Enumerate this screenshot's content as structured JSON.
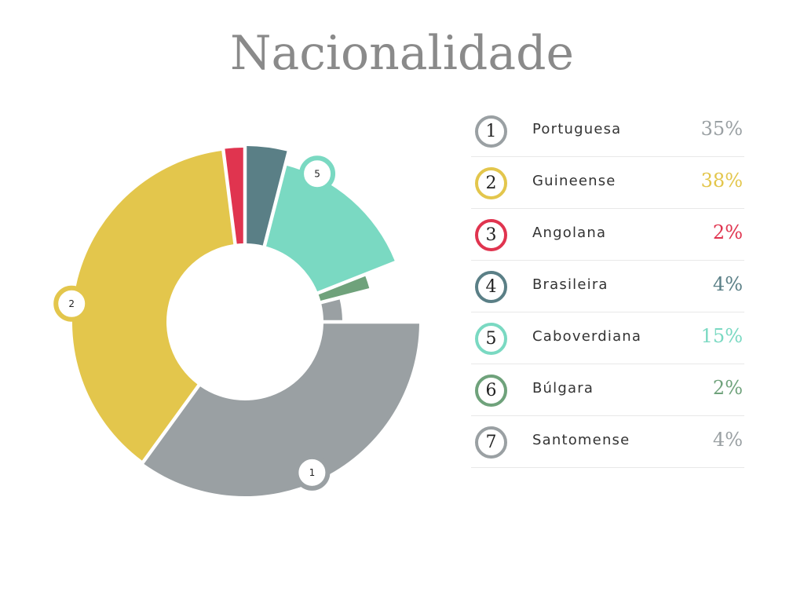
{
  "title": "Nacionalidade",
  "chart_data": {
    "type": "pie",
    "title": "Nacionalidade",
    "categories": [
      "Portuguesa",
      "Guineense",
      "Angolana",
      "Brasileira",
      "Caboverdiana",
      "Búlgara",
      "Santomense"
    ],
    "numbers": [
      "1",
      "2",
      "3",
      "4",
      "5",
      "6",
      "7"
    ],
    "values": [
      35,
      38,
      2,
      4,
      15,
      2,
      4
    ],
    "value_labels": [
      "35%",
      "38%",
      "2%",
      "4%",
      "15%",
      "2%",
      "4%"
    ],
    "colors": [
      "#9aa0a3",
      "#e3c64c",
      "#e0344f",
      "#5a7f86",
      "#7ad9c2",
      "#6fa27b",
      "#9aa0a3"
    ],
    "callouts": [
      "1",
      "2",
      "5"
    ],
    "legend_position": "right"
  }
}
